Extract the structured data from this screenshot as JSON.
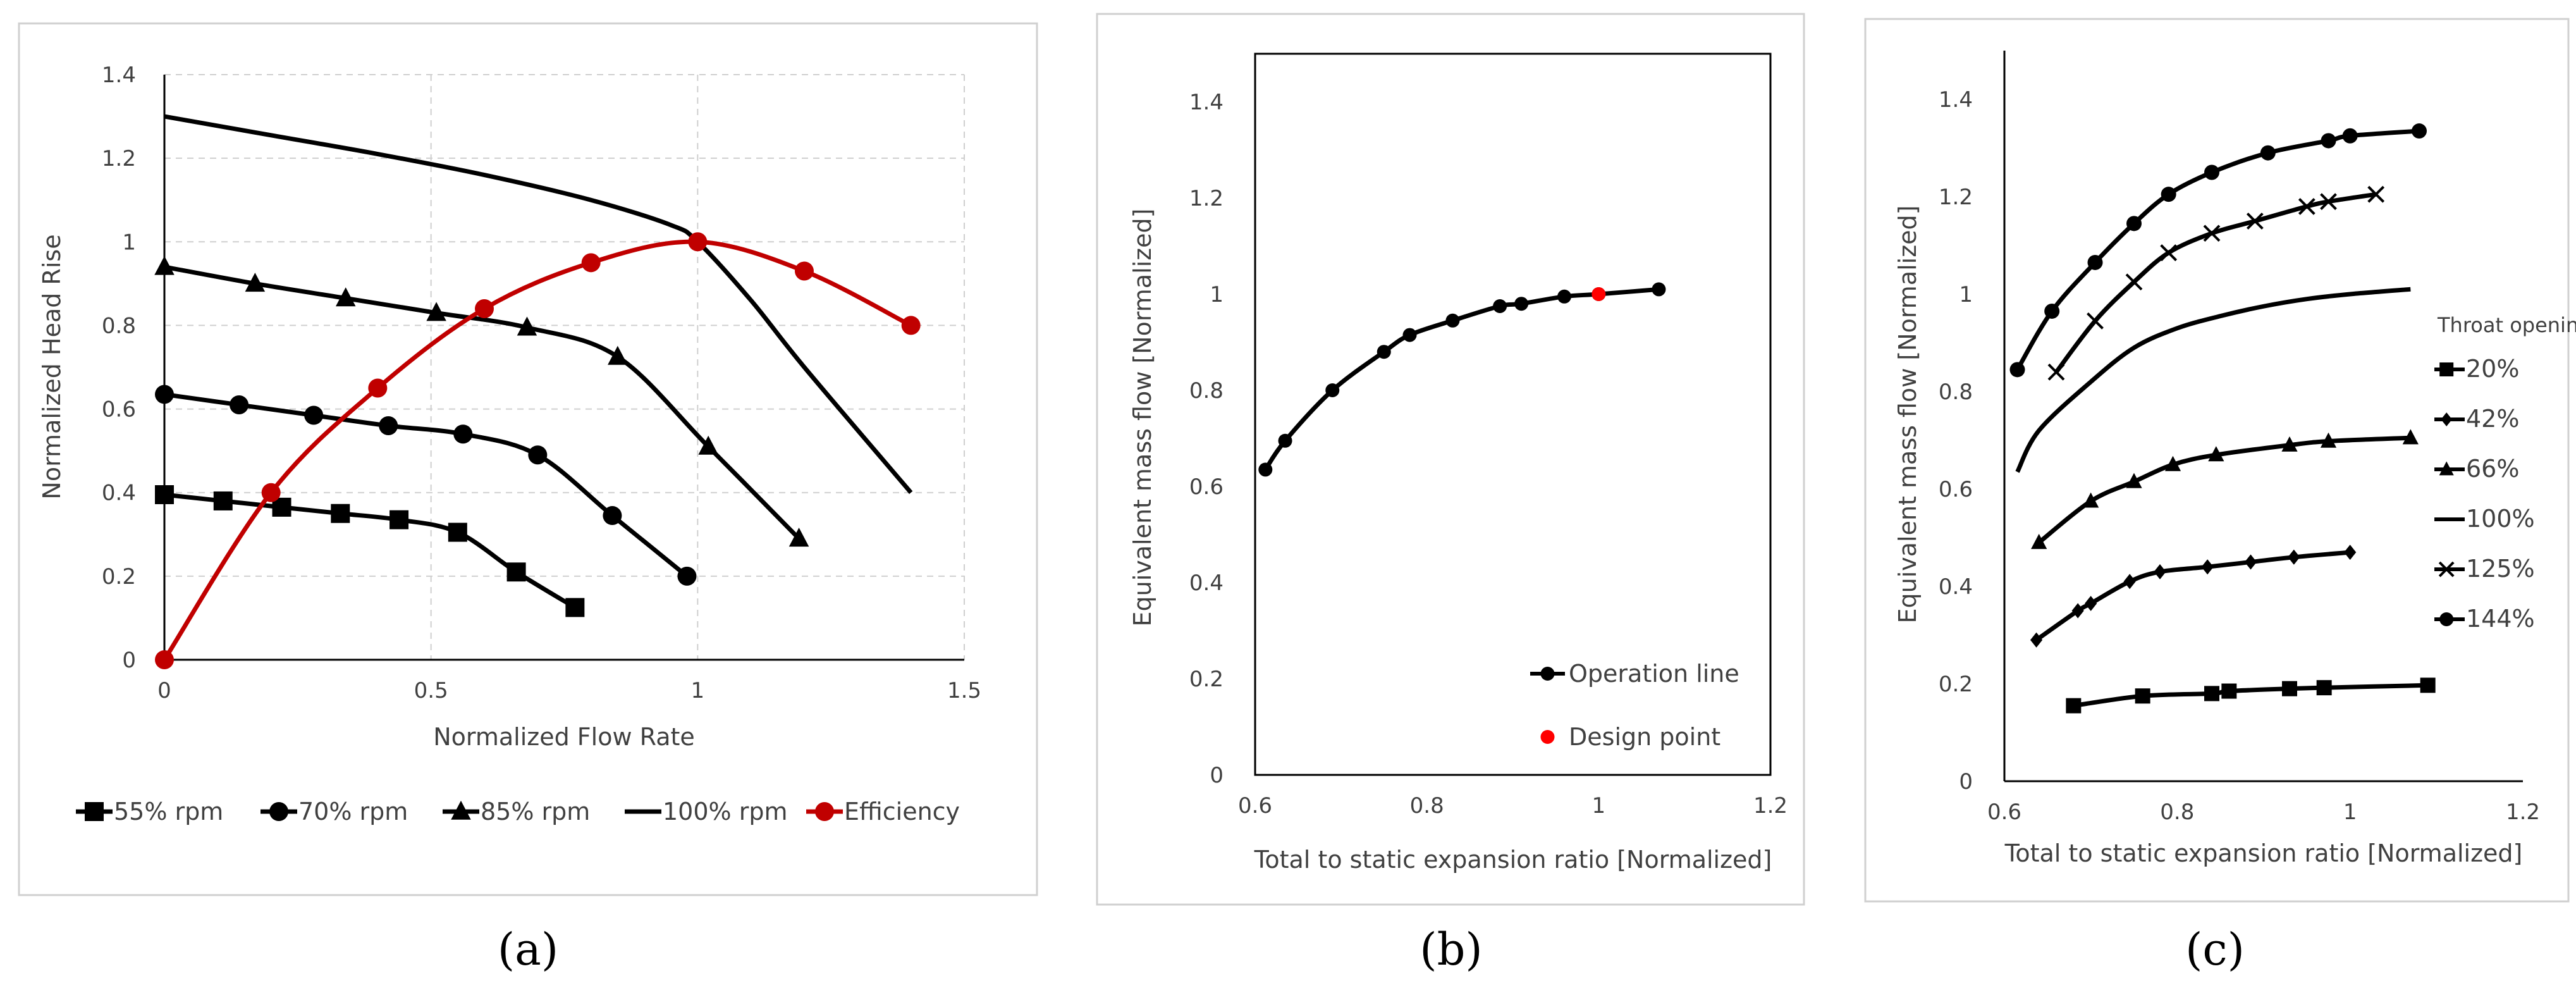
{
  "captions": [
    "(a)",
    "(b)",
    "(c)"
  ],
  "colors": {
    "black": "#000000",
    "red": "#c00000",
    "design_red": "#ff0000"
  },
  "chart_data": [
    {
      "type": "line",
      "panel": "a",
      "title": "",
      "xlabel": "Normalized Flow Rate",
      "ylabel": "Normalized Head Rise",
      "xlim": [
        0,
        1.5
      ],
      "ylim": [
        0,
        1.4
      ],
      "xticks": [
        0,
        0.5,
        1,
        1.5
      ],
      "xtick_labels": [
        "0",
        "0.5",
        "1",
        "1.5"
      ],
      "yticks": [
        0,
        0.2,
        0.4,
        0.6,
        0.8,
        1,
        1.2,
        1.4
      ],
      "ytick_labels": [
        "0",
        "0.2",
        "0.4",
        "0.6",
        "0.8",
        "1",
        "1.2",
        "1.4"
      ],
      "grid": true,
      "legend_position": "bottom",
      "series": [
        {
          "name": "55% rpm",
          "marker": "square",
          "color": "#000000",
          "x": [
            0,
            0.11,
            0.22,
            0.33,
            0.44,
            0.55,
            0.66,
            0.77
          ],
          "y": [
            0.395,
            0.38,
            0.365,
            0.35,
            0.335,
            0.305,
            0.21,
            0.125
          ]
        },
        {
          "name": "70% rpm",
          "marker": "circle",
          "color": "#000000",
          "x": [
            0,
            0.14,
            0.28,
            0.42,
            0.56,
            0.7,
            0.84,
            0.98
          ],
          "y": [
            0.635,
            0.61,
            0.585,
            0.56,
            0.54,
            0.49,
            0.345,
            0.2
          ]
        },
        {
          "name": "85% rpm",
          "marker": "triangle",
          "color": "#000000",
          "x": [
            0,
            0.17,
            0.34,
            0.51,
            0.68,
            0.85,
            1.02,
            1.19
          ],
          "y": [
            0.94,
            0.9,
            0.865,
            0.83,
            0.795,
            0.725,
            0.51,
            0.29
          ]
        },
        {
          "name": "100% rpm",
          "marker": "none",
          "color": "#000000",
          "x": [
            0,
            0.2,
            0.4,
            0.6,
            0.8,
            0.95,
            1.0,
            1.1,
            1.2,
            1.4
          ],
          "y": [
            1.3,
            1.255,
            1.21,
            1.16,
            1.1,
            1.04,
            1.0,
            0.86,
            0.7,
            0.4
          ]
        },
        {
          "name": "Efficiency",
          "marker": "circle",
          "color": "#c00000",
          "x": [
            0,
            0.2,
            0.4,
            0.6,
            0.8,
            1.0,
            1.2,
            1.4
          ],
          "y": [
            0.0,
            0.4,
            0.65,
            0.84,
            0.95,
            1.0,
            0.93,
            0.8
          ]
        }
      ]
    },
    {
      "type": "line",
      "panel": "b",
      "title": "",
      "xlabel": "Total to static expansion ratio [Normalized]",
      "ylabel": "Equivalent mass flow [Normalized]",
      "xlim": [
        0.6,
        1.2
      ],
      "ylim": [
        0,
        1.5
      ],
      "xticks": [
        0.6,
        0.8,
        1,
        1.2
      ],
      "xtick_labels": [
        "0.6",
        "0.8",
        "1",
        "1.2"
      ],
      "yticks": [
        0,
        0.2,
        0.4,
        0.6,
        0.8,
        1,
        1.2,
        1.4
      ],
      "ytick_labels": [
        "0",
        "0.2",
        "0.4",
        "0.6",
        "0.8",
        "1",
        "1.2",
        "1.4"
      ],
      "grid": false,
      "legend_position": "bottom-right",
      "series": [
        {
          "name": "Operation line",
          "marker": "circle",
          "color": "#000000",
          "x": [
            0.612,
            0.635,
            0.69,
            0.75,
            0.78,
            0.83,
            0.885,
            0.91,
            0.96,
            1.0,
            1.07
          ],
          "y": [
            0.635,
            0.695,
            0.8,
            0.88,
            0.915,
            0.945,
            0.975,
            0.98,
            0.995,
            1.0,
            1.01
          ]
        },
        {
          "name": "Design point",
          "marker": "circle",
          "color": "#ff0000",
          "line": false,
          "x": [
            1.0
          ],
          "y": [
            1.0
          ]
        }
      ]
    },
    {
      "type": "line",
      "panel": "c",
      "title": "",
      "xlabel": "Total to static expansion ratio [Normalized]",
      "ylabel": "Equivalent mass flow [Normalized]",
      "xlim": [
        0.6,
        1.2
      ],
      "ylim": [
        0,
        1.5
      ],
      "xticks": [
        0.6,
        0.8,
        1,
        1.2
      ],
      "xtick_labels": [
        "0.6",
        "0.8",
        "1",
        "1.2"
      ],
      "yticks": [
        0,
        0.2,
        0.4,
        0.6,
        0.8,
        1,
        1.2,
        1.4
      ],
      "ytick_labels": [
        "0",
        "0.2",
        "0.4",
        "0.6",
        "0.8",
        "1",
        "1.2",
        "1.4"
      ],
      "grid": false,
      "legend_title": "Throat opening",
      "legend_position": "right",
      "series": [
        {
          "name": "20%",
          "marker": "square",
          "color": "#000000",
          "x": [
            0.68,
            0.76,
            0.84,
            0.86,
            0.93,
            0.97,
            1.09
          ],
          "y": [
            0.155,
            0.175,
            0.18,
            0.185,
            0.19,
            0.192,
            0.197
          ]
        },
        {
          "name": "42%",
          "marker": "diamond",
          "color": "#000000",
          "x": [
            0.637,
            0.685,
            0.7,
            0.745,
            0.78,
            0.835,
            0.885,
            0.935,
            1.0
          ],
          "y": [
            0.29,
            0.35,
            0.365,
            0.41,
            0.43,
            0.44,
            0.45,
            0.46,
            0.47
          ]
        },
        {
          "name": "66%",
          "marker": "triangle",
          "color": "#000000",
          "x": [
            0.64,
            0.7,
            0.75,
            0.795,
            0.845,
            0.93,
            0.975,
            1.07
          ],
          "y": [
            0.49,
            0.575,
            0.615,
            0.65,
            0.67,
            0.69,
            0.698,
            0.705
          ]
        },
        {
          "name": "100%",
          "marker": "none",
          "color": "#000000",
          "x": [
            0.615,
            0.64,
            0.7,
            0.75,
            0.8,
            0.85,
            0.9,
            0.95,
            1.0,
            1.07
          ],
          "y": [
            0.635,
            0.72,
            0.82,
            0.89,
            0.93,
            0.955,
            0.975,
            0.99,
            1.0,
            1.01
          ]
        },
        {
          "name": "125%",
          "marker": "x",
          "color": "#000000",
          "x": [
            0.66,
            0.705,
            0.75,
            0.79,
            0.84,
            0.89,
            0.95,
            0.975,
            1.03
          ],
          "y": [
            0.84,
            0.945,
            1.025,
            1.085,
            1.125,
            1.15,
            1.18,
            1.19,
            1.205
          ]
        },
        {
          "name": "144%",
          "marker": "circle",
          "color": "#000000",
          "x": [
            0.615,
            0.655,
            0.705,
            0.75,
            0.79,
            0.84,
            0.905,
            0.975,
            1.0,
            1.08
          ],
          "y": [
            0.845,
            0.965,
            1.065,
            1.145,
            1.205,
            1.25,
            1.29,
            1.315,
            1.325,
            1.335
          ]
        }
      ]
    }
  ]
}
